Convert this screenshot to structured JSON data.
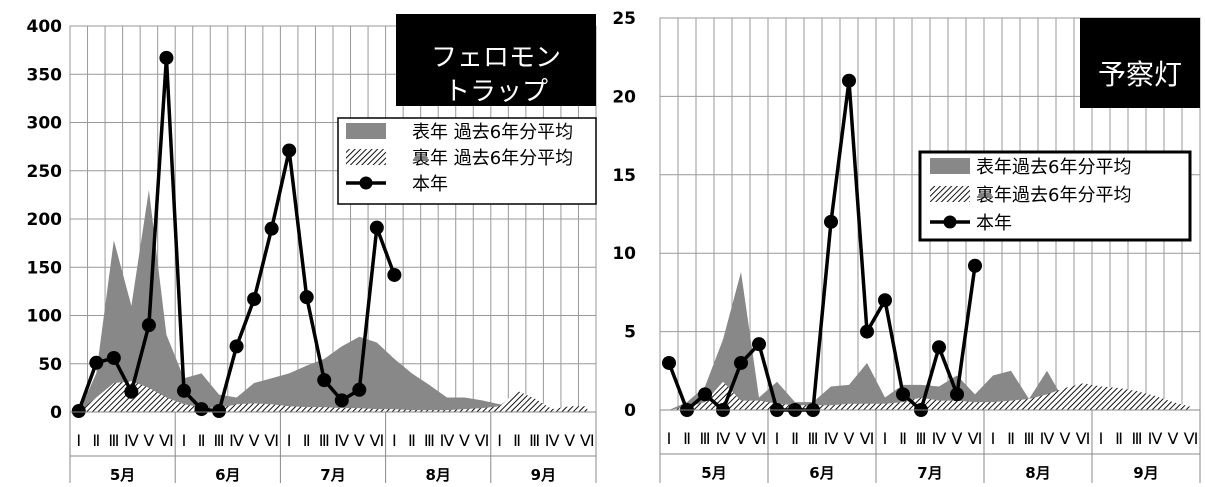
{
  "chart_data": [
    {
      "type": "line",
      "title": "フェロモン\nトラップ",
      "ylim": [
        0,
        400
      ],
      "yticks": [
        0,
        50,
        100,
        150,
        200,
        250,
        300,
        350,
        400
      ],
      "months": [
        "5月",
        "6月",
        "7月",
        "8月",
        "9月"
      ],
      "periods": [
        "Ⅰ",
        "Ⅱ",
        "Ⅲ",
        "Ⅳ",
        "Ⅴ",
        "Ⅵ"
      ],
      "grid": true,
      "legend_position": "top-right",
      "series": [
        {
          "name": "表年 過去6年分平均",
          "kind": "area-gray",
          "values": [
            0,
            40,
            178,
            110,
            230,
            80,
            35,
            40,
            18,
            15,
            30,
            35,
            40,
            48,
            55,
            68,
            78,
            72,
            55,
            40,
            28,
            15,
            15,
            12,
            8,
            5,
            4,
            3,
            3,
            2
          ]
        },
        {
          "name": "裏年 過去6年分平均",
          "kind": "area-hatched",
          "values": [
            0,
            15,
            30,
            32,
            25,
            15,
            8,
            5,
            4,
            8,
            9,
            8,
            6,
            5,
            5,
            4,
            4,
            3,
            3,
            2,
            2,
            2,
            3,
            4,
            6,
            22,
            14,
            3,
            6,
            6
          ]
        },
        {
          "name": "本年",
          "kind": "line-marker",
          "values": [
            1,
            51,
            56,
            21,
            90,
            367,
            22,
            3,
            1,
            68,
            117,
            190,
            271,
            119,
            33,
            12,
            23,
            191,
            142,
            null,
            null,
            null,
            null,
            null,
            null,
            null,
            null,
            null,
            null,
            null
          ]
        }
      ]
    },
    {
      "type": "line",
      "title": "予察灯",
      "ylim": [
        0,
        25
      ],
      "yticks": [
        0,
        5,
        10,
        15,
        20,
        25
      ],
      "months": [
        "5月",
        "6月",
        "7月",
        "8月",
        "9月"
      ],
      "periods": [
        "Ⅰ",
        "Ⅱ",
        "Ⅲ",
        "Ⅳ",
        "Ⅴ",
        "Ⅵ"
      ],
      "grid": true,
      "legend_position": "top-right",
      "series": [
        {
          "name": "表年過去6年分平均",
          "kind": "area-gray",
          "values": [
            0,
            0.5,
            1.5,
            4.5,
            8.8,
            0.8,
            1.8,
            0.5,
            0.5,
            1.5,
            1.6,
            3.0,
            0.8,
            1.6,
            1.6,
            1.5,
            2.2,
            1.0,
            2.2,
            2.5,
            0.7,
            2.5,
            0.5,
            0.6,
            0.5,
            0.5,
            0.5,
            0.2,
            0.2,
            0.2
          ]
        },
        {
          "name": "裏年過去6年分平均",
          "kind": "area-hatched",
          "values": [
            0,
            0.2,
            0.5,
            1.8,
            0.6,
            0.6,
            0.4,
            0.3,
            0.3,
            0.3,
            0.4,
            0.4,
            0.4,
            0.5,
            0.8,
            0.6,
            0.6,
            0.5,
            0.5,
            0.6,
            0.7,
            1.0,
            1.4,
            1.7,
            1.5,
            1.4,
            1.2,
            0.9,
            0.5,
            0.2
          ]
        },
        {
          "name": "本年",
          "kind": "line-marker",
          "values": [
            3,
            0,
            1,
            0,
            3,
            4.2,
            0,
            0,
            0,
            12,
            21,
            5,
            7,
            1,
            0,
            4,
            1,
            9.2,
            null,
            null,
            null,
            null,
            null,
            null,
            null,
            null,
            null,
            null,
            null,
            null
          ]
        }
      ]
    }
  ]
}
